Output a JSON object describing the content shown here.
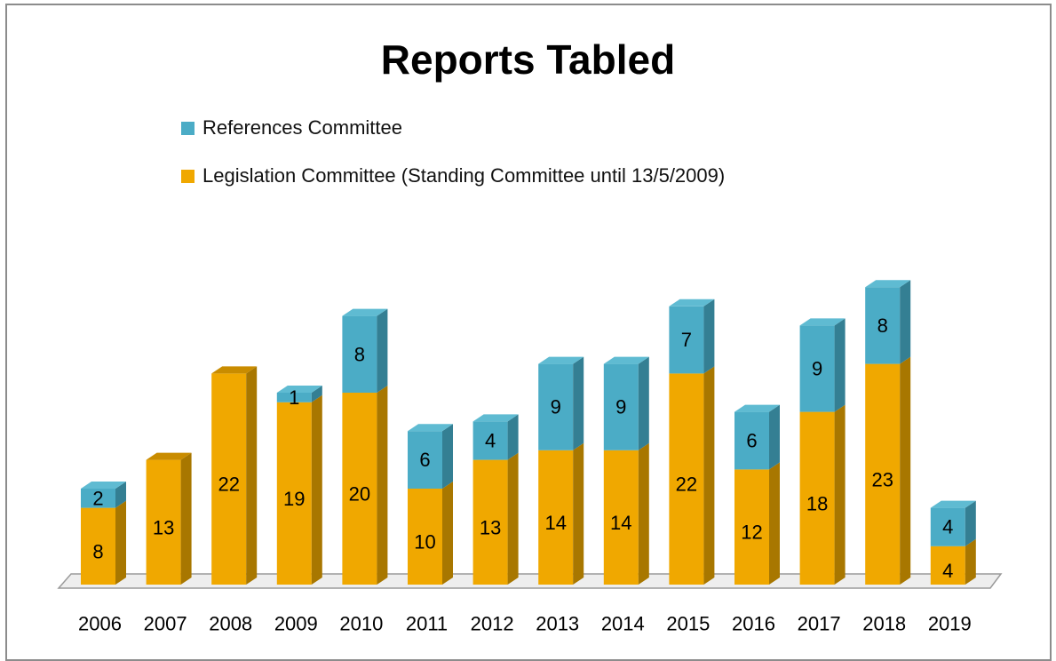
{
  "colors": {
    "references": "#4bacc6",
    "references_top": "#5fbbd2",
    "references_side": "#347f93",
    "legislation": "#f0a800",
    "legislation_side": "#a87700",
    "legislation_top": "#c98c00",
    "floor": "#eeeeee",
    "floor_edge": "#9a9a9a"
  },
  "chart_data": {
    "type": "bar",
    "stacked": true,
    "title": "Reports Tabled",
    "xlabel": "",
    "ylabel": "",
    "ylim": [
      0,
      33
    ],
    "grid": false,
    "legend_position": "top-left",
    "categories": [
      "2006",
      "2007",
      "2008",
      "2009",
      "2010",
      "2011",
      "2012",
      "2013",
      "2014",
      "2015",
      "2016",
      "2017",
      "2018",
      "2019"
    ],
    "series": [
      {
        "name": "Legislation Committee (Standing Committee until 13/5/2009)",
        "color": "#f0a800",
        "values": [
          8,
          13,
          22,
          19,
          20,
          10,
          13,
          14,
          14,
          22,
          12,
          18,
          23,
          4
        ],
        "labels": [
          "8",
          "13",
          "22",
          "19",
          "20",
          "10",
          "13",
          "14",
          "14",
          "22",
          "12",
          "18",
          "23",
          "4"
        ]
      },
      {
        "name": "References Committee",
        "color": "#4bacc6",
        "values": [
          2,
          0,
          0,
          1,
          8,
          6,
          4,
          9,
          9,
          7,
          6,
          9,
          8,
          4
        ],
        "labels": [
          "2",
          "",
          "",
          "1",
          "8",
          "6",
          "4",
          "9",
          "9",
          "7",
          "6",
          "9",
          "8",
          "4"
        ]
      }
    ]
  }
}
